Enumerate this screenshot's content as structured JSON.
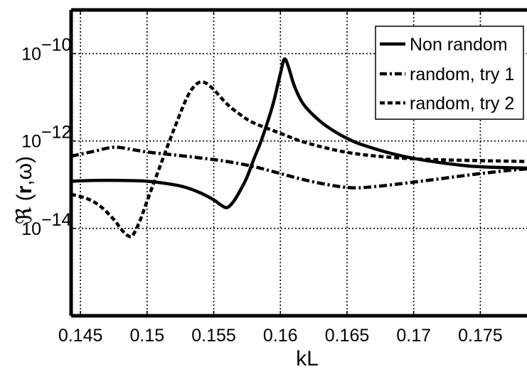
{
  "chart_data": {
    "type": "line",
    "title": "",
    "xlabel": "kL",
    "ylabel": "ℜ (r,ω)",
    "ylabel_parts": {
      "symbol": "ℜ",
      "open": " (",
      "vector": "r",
      "rest": ",ω)"
    },
    "xlim": [
      0.1443,
      0.1785
    ],
    "ylim": [
      1e-16,
      1e-09
    ],
    "yscale": "log",
    "grid": true,
    "legend_position": "top-right",
    "x_ticks": [
      {
        "value": 0.145,
        "label": "0.145"
      },
      {
        "value": 0.15,
        "label": "0.15"
      },
      {
        "value": 0.155,
        "label": "0.155"
      },
      {
        "value": 0.16,
        "label": "0.16"
      },
      {
        "value": 0.165,
        "label": "0.165"
      },
      {
        "value": 0.17,
        "label": "0.17"
      },
      {
        "value": 0.175,
        "label": "0.175"
      }
    ],
    "y_ticks": [
      {
        "value": 1e-14,
        "base": "10",
        "exponent": "−14"
      },
      {
        "value": 1e-12,
        "base": "10",
        "exponent": "−12"
      },
      {
        "value": 1e-10,
        "base": "10",
        "exponent": "−10"
      }
    ],
    "series": [
      {
        "name": "Non random",
        "style": "solid",
        "x": [
          0.1443,
          0.146,
          0.148,
          0.15,
          0.152,
          0.153,
          0.154,
          0.155,
          0.1555,
          0.156,
          0.1565,
          0.157,
          0.1575,
          0.158,
          0.1585,
          0.159,
          0.1595,
          0.16,
          0.1603,
          0.1606,
          0.161,
          0.1615,
          0.162,
          0.163,
          0.164,
          0.165,
          0.166,
          0.168,
          0.17,
          0.172,
          0.174,
          0.176,
          0.1785
        ],
        "y": [
          1.2e-13,
          1.25e-13,
          1.25e-13,
          1.2e-13,
          1e-13,
          8.5e-14,
          6.5e-14,
          4.5e-14,
          3.5e-14,
          3e-14,
          4.2e-14,
          7.5e-14,
          1.5e-13,
          3.8e-13,
          9e-13,
          2.5e-12,
          8e-12,
          3.5e-11,
          7.5e-11,
          5e-11,
          2e-11,
          9e-12,
          5.5e-12,
          2.8e-12,
          1.7e-12,
          1.15e-12,
          8.5e-13,
          5.5e-13,
          4e-13,
          3.2e-13,
          2.7e-13,
          2.5e-13,
          2.4e-13
        ]
      },
      {
        "name": "random, try 1",
        "style": "dashdot",
        "x": [
          0.1443,
          0.146,
          0.1475,
          0.149,
          0.15,
          0.152,
          0.154,
          0.156,
          0.158,
          0.16,
          0.162,
          0.164,
          0.1655,
          0.167,
          0.169,
          0.171,
          0.173,
          0.175,
          0.177,
          0.1785
        ],
        "y": [
          4.5e-13,
          5.8e-13,
          7.2e-13,
          6.3e-13,
          5.6e-13,
          4.8e-13,
          4.1e-13,
          3.4e-13,
          2.6e-13,
          1.8e-13,
          1.25e-13,
          9.5e-14,
          8.5e-14,
          9e-14,
          1.05e-13,
          1.25e-13,
          1.5e-13,
          1.8e-13,
          2.1e-13,
          2.3e-13
        ]
      },
      {
        "name": "random, try 2",
        "style": "dashed",
        "x": [
          0.1443,
          0.1455,
          0.1465,
          0.1475,
          0.1482,
          0.1487,
          0.149,
          0.1495,
          0.15,
          0.151,
          0.152,
          0.153,
          0.1537,
          0.1543,
          0.155,
          0.156,
          0.157,
          0.158,
          0.16,
          0.162,
          0.165,
          0.168,
          0.171,
          0.174,
          0.1785
        ],
        "y": [
          6e-14,
          4.8e-14,
          3.2e-14,
          1.6e-14,
          8.5e-15,
          6.5e-15,
          7.5e-15,
          1.6e-14,
          4.2e-14,
          2.8e-13,
          1.8e-12,
          1e-11,
          2e-11,
          2.2e-11,
          1.5e-11,
          7e-12,
          4e-12,
          2.6e-12,
          1.5e-12,
          9e-13,
          5.5e-13,
          4.3e-13,
          3.8e-13,
          3.6e-13,
          3.4e-13
        ]
      }
    ]
  }
}
